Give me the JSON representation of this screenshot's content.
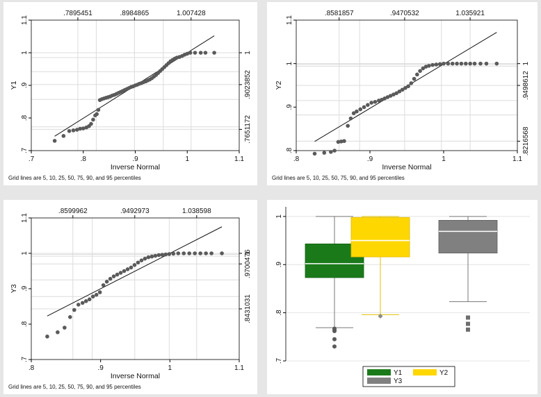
{
  "chart_data": [
    {
      "type": "scatter",
      "subtype": "qnorm",
      "xlabel": "Inverse Normal",
      "ylabel": "Y1",
      "note": "Grid lines are 5, 10, 25, 50, 75, 90, and 95 percentiles",
      "xlim": [
        0.7,
        1.1
      ],
      "ylim": [
        0.7,
        1.1
      ],
      "xticks": [
        0.7,
        0.8,
        0.9,
        1,
        1.1
      ],
      "xtick_labels": [
        ".7",
        ".8",
        ".9",
        "1",
        "1.1"
      ],
      "yticks": [
        0.7,
        0.8,
        0.9,
        1,
        1.1
      ],
      "ytick_labels": [
        ".7",
        ".8",
        ".9",
        "1",
        "1.1"
      ],
      "top_ticks": [
        0.7895451,
        0.8984865,
        1.007428
      ],
      "top_labels": [
        ".7895451",
        ".8984865",
        "1.007428"
      ],
      "right_ticks": [
        0.7651172,
        0.9023852,
        1
      ],
      "right_labels": [
        ".7651172",
        ".9023852",
        "1"
      ],
      "grid_x": [
        0.7895451,
        0.825,
        0.8984865,
        0.954,
        1.007428
      ],
      "grid_y": [
        0.7651172,
        0.773,
        0.857,
        0.9023852,
        0.942,
        0.985,
        1
      ],
      "fit_line": [
        [
          0.745,
          0.744
        ],
        [
          1.052,
          1.052
        ]
      ],
      "points": [
        [
          0.745,
          0.73
        ],
        [
          0.762,
          0.745
        ],
        [
          0.773,
          0.76
        ],
        [
          0.781,
          0.762
        ],
        [
          0.788,
          0.764
        ],
        [
          0.794,
          0.767
        ],
        [
          0.8,
          0.768
        ],
        [
          0.806,
          0.771
        ],
        [
          0.811,
          0.775
        ],
        [
          0.815,
          0.782
        ],
        [
          0.819,
          0.795
        ],
        [
          0.823,
          0.808
        ],
        [
          0.826,
          0.812
        ],
        [
          0.829,
          0.825
        ],
        [
          0.832,
          0.855
        ],
        [
          0.836,
          0.858
        ],
        [
          0.84,
          0.86
        ],
        [
          0.844,
          0.862
        ],
        [
          0.848,
          0.864
        ],
        [
          0.852,
          0.866
        ],
        [
          0.856,
          0.869
        ],
        [
          0.86,
          0.871
        ],
        [
          0.864,
          0.874
        ],
        [
          0.868,
          0.877
        ],
        [
          0.872,
          0.88
        ],
        [
          0.876,
          0.883
        ],
        [
          0.88,
          0.886
        ],
        [
          0.884,
          0.889
        ],
        [
          0.888,
          0.892
        ],
        [
          0.892,
          0.895
        ],
        [
          0.896,
          0.897
        ],
        [
          0.9,
          0.9
        ],
        [
          0.904,
          0.902
        ],
        [
          0.908,
          0.905
        ],
        [
          0.912,
          0.907
        ],
        [
          0.916,
          0.91
        ],
        [
          0.92,
          0.912
        ],
        [
          0.924,
          0.915
        ],
        [
          0.928,
          0.918
        ],
        [
          0.932,
          0.922
        ],
        [
          0.936,
          0.927
        ],
        [
          0.94,
          0.932
        ],
        [
          0.944,
          0.938
        ],
        [
          0.948,
          0.944
        ],
        [
          0.952,
          0.95
        ],
        [
          0.956,
          0.956
        ],
        [
          0.96,
          0.962
        ],
        [
          0.964,
          0.968
        ],
        [
          0.968,
          0.974
        ],
        [
          0.972,
          0.978
        ],
        [
          0.976,
          0.982
        ],
        [
          0.98,
          0.985
        ],
        [
          0.985,
          0.987
        ],
        [
          0.99,
          0.99
        ],
        [
          0.995,
          0.994
        ],
        [
          1.0,
          0.997
        ],
        [
          1.006,
          1.0
        ],
        [
          1.015,
          1.0
        ],
        [
          1.026,
          1.0
        ],
        [
          1.035,
          1.0
        ],
        [
          1.052,
          1.0
        ]
      ]
    },
    {
      "type": "scatter",
      "subtype": "qnorm",
      "xlabel": "Inverse Normal",
      "ylabel": "Y2",
      "note": "Grid lines are 5, 10, 25, 50, 75, 90, and 95 percentiles",
      "xlim": [
        0.8,
        1.1
      ],
      "ylim": [
        0.8,
        1.1
      ],
      "xticks": [
        0.8,
        0.9,
        1,
        1.1
      ],
      "xtick_labels": [
        ".8",
        ".9",
        "1",
        "1.1"
      ],
      "yticks": [
        0.8,
        0.9,
        1,
        1.1
      ],
      "ytick_labels": [
        ".8",
        ".9",
        "1",
        "1.1"
      ],
      "top_ticks": [
        0.8581857,
        0.9470532,
        1.035921
      ],
      "top_labels": [
        ".8581857",
        ".9470532",
        "1.035921"
      ],
      "right_ticks": [
        0.8216568,
        0.9498612,
        1
      ],
      "right_labels": [
        ".8216568",
        ".9498612",
        "1"
      ],
      "grid_x": [
        0.8581857,
        0.886,
        0.9470532,
        0.997,
        1.035921
      ],
      "grid_y": [
        0.8216568,
        0.882,
        0.915,
        0.9498612,
        0.994,
        0.998,
        1
      ],
      "fit_line": [
        [
          0.825,
          0.821
        ],
        [
          1.072,
          1.072
        ]
      ],
      "points": [
        [
          0.825,
          0.793
        ],
        [
          0.838,
          0.795
        ],
        [
          0.847,
          0.797
        ],
        [
          0.852,
          0.8
        ],
        [
          0.857,
          0.82
        ],
        [
          0.861,
          0.821
        ],
        [
          0.865,
          0.822
        ],
        [
          0.87,
          0.857
        ],
        [
          0.874,
          0.874
        ],
        [
          0.878,
          0.886
        ],
        [
          0.882,
          0.89
        ],
        [
          0.887,
          0.895
        ],
        [
          0.892,
          0.9
        ],
        [
          0.897,
          0.905
        ],
        [
          0.902,
          0.91
        ],
        [
          0.907,
          0.912
        ],
        [
          0.912,
          0.915
        ],
        [
          0.916,
          0.917
        ],
        [
          0.92,
          0.92
        ],
        [
          0.924,
          0.923
        ],
        [
          0.928,
          0.926
        ],
        [
          0.932,
          0.929
        ],
        [
          0.936,
          0.932
        ],
        [
          0.94,
          0.936
        ],
        [
          0.944,
          0.94
        ],
        [
          0.948,
          0.944
        ],
        [
          0.952,
          0.948
        ],
        [
          0.956,
          0.955
        ],
        [
          0.96,
          0.965
        ],
        [
          0.964,
          0.975
        ],
        [
          0.968,
          0.983
        ],
        [
          0.972,
          0.989
        ],
        [
          0.976,
          0.993
        ],
        [
          0.98,
          0.995
        ],
        [
          0.985,
          0.997
        ],
        [
          0.99,
          0.998
        ],
        [
          0.995,
          0.999
        ],
        [
          1.0,
          1.0
        ],
        [
          1.006,
          1.0
        ],
        [
          1.012,
          1.0
        ],
        [
          1.018,
          1.0
        ],
        [
          1.024,
          1.0
        ],
        [
          1.03,
          1.0
        ],
        [
          1.036,
          1.0
        ],
        [
          1.042,
          1.0
        ],
        [
          1.05,
          1.0
        ],
        [
          1.058,
          1.0
        ],
        [
          1.072,
          1.0
        ]
      ]
    },
    {
      "type": "scatter",
      "subtype": "qnorm",
      "xlabel": "Inverse Normal",
      "ylabel": "Y3",
      "note": "Grid lines are 5, 10, 25, 50, 75, 90, and 95 percentiles",
      "xlim": [
        0.8,
        1.1
      ],
      "ylim": [
        0.7,
        1.1
      ],
      "xticks": [
        0.8,
        0.9,
        1,
        1.1
      ],
      "xtick_labels": [
        ".8",
        ".9",
        "1",
        "1.1"
      ],
      "yticks": [
        0.7,
        0.8,
        0.9,
        1,
        1.1
      ],
      "ytick_labels": [
        ".7",
        ".8",
        ".9",
        "1",
        "1.1"
      ],
      "top_ticks": [
        0.8599962,
        0.9492973,
        1.038598
      ],
      "top_labels": [
        ".8599962",
        ".9492973",
        "1.038598"
      ],
      "right_ticks": [
        0.8431031,
        0.9700476,
        1
      ],
      "right_labels": [
        ".8431031",
        ".9700476",
        "1"
      ],
      "grid_x": [
        0.8599962,
        0.888,
        0.9492973,
        0.999,
        1.038598
      ],
      "grid_y": [
        0.8431031,
        0.878,
        0.925,
        0.9700476,
        0.992,
        0.997,
        1
      ],
      "fit_line": [
        [
          0.823,
          0.823
        ],
        [
          1.075,
          1.075
        ]
      ],
      "points": [
        [
          0.823,
          0.765
        ],
        [
          0.838,
          0.777
        ],
        [
          0.848,
          0.79
        ],
        [
          0.856,
          0.82
        ],
        [
          0.862,
          0.84
        ],
        [
          0.868,
          0.855
        ],
        [
          0.874,
          0.86
        ],
        [
          0.879,
          0.865
        ],
        [
          0.884,
          0.87
        ],
        [
          0.889,
          0.878
        ],
        [
          0.894,
          0.883
        ],
        [
          0.899,
          0.89
        ],
        [
          0.904,
          0.91
        ],
        [
          0.909,
          0.92
        ],
        [
          0.914,
          0.928
        ],
        [
          0.919,
          0.935
        ],
        [
          0.924,
          0.94
        ],
        [
          0.929,
          0.945
        ],
        [
          0.934,
          0.95
        ],
        [
          0.939,
          0.955
        ],
        [
          0.944,
          0.96
        ],
        [
          0.949,
          0.967
        ],
        [
          0.954,
          0.974
        ],
        [
          0.959,
          0.98
        ],
        [
          0.964,
          0.985
        ],
        [
          0.969,
          0.989
        ],
        [
          0.974,
          0.991
        ],
        [
          0.979,
          0.993
        ],
        [
          0.984,
          0.995
        ],
        [
          0.989,
          0.996
        ],
        [
          0.994,
          0.997
        ],
        [
          0.999,
          0.998
        ],
        [
          1.005,
          0.999
        ],
        [
          1.012,
          1.0
        ],
        [
          1.02,
          1.0
        ],
        [
          1.028,
          1.0
        ],
        [
          1.036,
          1.0
        ],
        [
          1.044,
          1.0
        ],
        [
          1.052,
          1.0
        ],
        [
          1.06,
          1.0
        ],
        [
          1.075,
          1.0
        ]
      ]
    },
    {
      "type": "box",
      "ylim": [
        0.7,
        1.02
      ],
      "yticks": [
        0.7,
        0.8,
        0.9,
        1
      ],
      "ytick_labels": [
        ".7",
        ".8",
        ".9",
        "1"
      ],
      "series": [
        {
          "name": "Y1",
          "color": "#1a7a1a",
          "median": 0.902,
          "q1": 0.873,
          "q3": 0.943,
          "whisker_low": 0.769,
          "whisker_high": 1.0,
          "outliers": [
            0.767,
            0.764,
            0.762,
            0.745,
            0.73
          ]
        },
        {
          "name": "Y2",
          "color": "#ffd700",
          "median": 0.95,
          "q1": 0.916,
          "q3": 0.998,
          "whisker_low": 0.796,
          "whisker_high": 1.0,
          "outliers": [
            0.793
          ]
        },
        {
          "name": "Y3",
          "color": "#808080",
          "median": 0.969,
          "q1": 0.924,
          "q3": 0.992,
          "whisker_low": 0.823,
          "whisker_high": 1.0,
          "outliers": [
            0.79,
            0.777,
            0.765
          ]
        }
      ],
      "legend": [
        "Y1",
        "Y2",
        "Y3"
      ]
    }
  ]
}
